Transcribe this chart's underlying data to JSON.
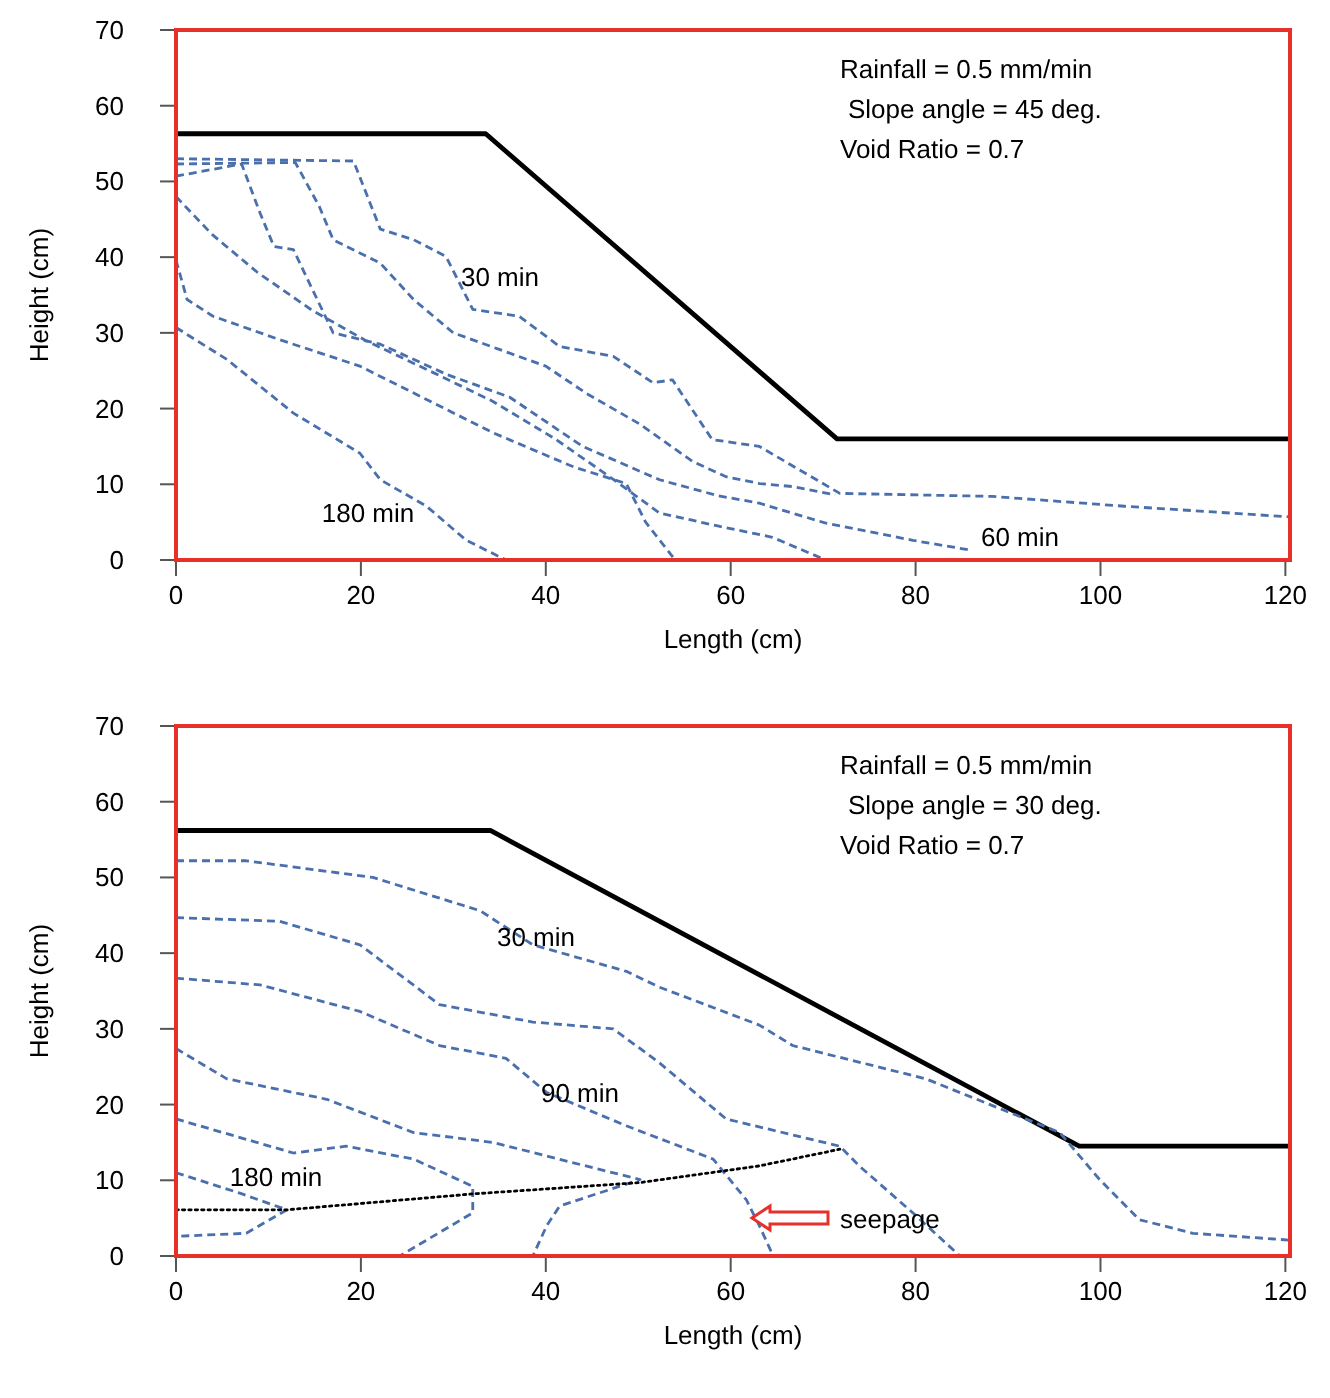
{
  "chart_data": [
    {
      "type": "line",
      "xlabel": "Length (cm)",
      "ylabel": "Height (cm)",
      "xlim": [
        0,
        120.5
      ],
      "xticks": [
        0,
        20,
        40,
        60,
        80,
        100,
        120
      ],
      "ylim": [
        0,
        70
      ],
      "yticks": [
        0,
        10,
        20,
        30,
        40,
        50,
        60,
        70
      ],
      "annotations": [
        "Rainfall = 0.5 mm/min",
        "Slope angle = 45 deg.",
        "Void Ratio = 0.7",
        "30 min",
        "180 min",
        "60 min"
      ],
      "series": [
        {
          "color": "#000000",
          "line_style": "solid",
          "x": [
            0,
            33.5,
            71.5,
            120.5
          ],
          "values": [
            56.3,
            56.3,
            16,
            16
          ]
        },
        {
          "color": "#4a6fad",
          "line_style": "dashed",
          "x": [
            0,
            19.2,
            22.1,
            25.7,
            29.2,
            32.1,
            37.1,
            41.5,
            47.3,
            51.6,
            53.7,
            58,
            63.1,
            71.8,
            88.3,
            102.6,
            120.4
          ],
          "values": [
            53,
            52.7,
            43.7,
            42.3,
            40.1,
            33.1,
            32.2,
            28.2,
            26.9,
            23.4,
            23.8,
            15.9,
            15,
            8.8,
            8.4,
            7.1,
            5.7
          ]
        },
        {
          "color": "#4a6fad",
          "line_style": "dashed",
          "x": [
            0,
            12.9,
            15.5,
            17,
            22.1,
            25.7,
            30,
            40,
            44.4,
            50.1,
            55.9,
            59.5,
            63.1,
            66.7,
            71.3
          ],
          "values": [
            52.3,
            52.5,
            46.7,
            42.3,
            39.2,
            34.4,
            30,
            25.6,
            22,
            18,
            13,
            11,
            10.1,
            9.7,
            8.6
          ]
        },
        {
          "color": "#4a6fad",
          "line_style": "dashed",
          "x": [
            0,
            7.1,
            9.1,
            10.6,
            12.7,
            17,
            22.1,
            29.3,
            36.1,
            44,
            52.3,
            58.6,
            63.1,
            70.2,
            79.7,
            86
          ],
          "values": [
            50.7,
            52.3,
            45.8,
            41.4,
            41,
            30,
            28.5,
            24.5,
            21.5,
            15,
            10.6,
            8.5,
            7.5,
            4.9,
            2.6,
            1.3
          ]
        },
        {
          "color": "#4a6fad",
          "line_style": "dashed",
          "x": [
            0,
            3.9,
            8.8,
            14.7,
            20.5,
            27.4,
            34.2,
            41,
            46.9,
            52.3,
            58.6,
            64.5,
            70.3
          ],
          "values": [
            48,
            43,
            38,
            33,
            29,
            25,
            21,
            16,
            11,
            6.2,
            4.5,
            3,
            0
          ]
        },
        {
          "color": "#4a6fad",
          "line_style": "dashed",
          "x": [
            0,
            1.2,
            4,
            11.2,
            19.9,
            27.1,
            34.3,
            43,
            48.7,
            50.8,
            54
          ],
          "values": [
            39.6,
            34.4,
            32.2,
            29.1,
            25.6,
            21.2,
            16.8,
            12.3,
            10.1,
            5,
            0
          ]
        },
        {
          "color": "#4a6fad",
          "line_style": "dashed",
          "x": [
            0,
            5.5,
            12.7,
            19.9,
            22.1,
            27.1,
            31.4,
            35.7
          ],
          "values": [
            30.7,
            26.5,
            19.4,
            14.1,
            10.6,
            7.1,
            2.6,
            0
          ]
        }
      ]
    },
    {
      "type": "line",
      "xlabel": "Length (cm)",
      "ylabel": "Height (cm)",
      "xlim": [
        0,
        120.5
      ],
      "xticks": [
        0,
        20,
        40,
        60,
        80,
        100,
        120
      ],
      "ylim": [
        0,
        70
      ],
      "yticks": [
        0,
        10,
        20,
        30,
        40,
        50,
        60,
        70
      ],
      "annotations": [
        "Rainfall = 0.5 mm/min",
        "Slope angle = 30 deg.",
        "Void Ratio = 0.7",
        "30 min",
        "90 min",
        "180 min",
        "seepage"
      ],
      "series": [
        {
          "color": "#000000",
          "line_style": "solid",
          "x": [
            0,
            34,
            97.7,
            120.5
          ],
          "values": [
            56.2,
            56.2,
            14.5,
            14.5
          ]
        },
        {
          "color": "#4a6fad",
          "line_style": "dashed",
          "x": [
            0,
            7.6,
            21.3,
            32.9,
            38.6,
            48.7,
            52.3,
            63.1,
            66.7,
            81.1,
            95.6,
            99.9,
            104.2,
            110,
            120.4
          ],
          "values": [
            52.2,
            52.2,
            50,
            45.6,
            41.1,
            37.6,
            35.5,
            30.5,
            27.8,
            23.4,
            16.3,
            10.1,
            4.8,
            3,
            2.1
          ]
        },
        {
          "color": "#4a6fad",
          "line_style": "dashed",
          "x": [
            0,
            11.2,
            19.9,
            28.5,
            38.6,
            47.3,
            52.3,
            59.5,
            71.8,
            73.9,
            79.7,
            84.8
          ],
          "values": [
            44.7,
            44.2,
            41.1,
            33.2,
            30.9,
            30,
            25.5,
            18.1,
            14.5,
            11.9,
            5.7,
            0
          ]
        },
        {
          "color": "#4a6fad",
          "line_style": "dashed",
          "x": [
            0,
            9.1,
            19.9,
            28.5,
            35.7,
            40.1,
            48.7,
            58.1,
            61.7,
            63.1,
            64.6
          ],
          "values": [
            36.7,
            35.8,
            32.3,
            27.8,
            26.1,
            21.6,
            17.2,
            12.8,
            7.4,
            4,
            0
          ]
        },
        {
          "color": "#4a6fad",
          "line_style": "dashed",
          "x": [
            0,
            5.5,
            16.3,
            25.7,
            34.3,
            43,
            50.2,
            41.5,
            40.1,
            38.6
          ],
          "values": [
            27.4,
            23.4,
            20.7,
            16.3,
            15,
            12.3,
            10.1,
            6.6,
            4,
            0
          ]
        },
        {
          "color": "#4a6fad",
          "line_style": "dashed",
          "x": [
            0,
            12.7,
            18.4,
            25.7,
            32.1,
            32.1,
            24.2
          ],
          "values": [
            18.1,
            13.6,
            14.5,
            12.8,
            9.2,
            5.7,
            0
          ]
        },
        {
          "color": "#4a6fad",
          "line_style": "dashed",
          "x": [
            0,
            6.9,
            12,
            7.6,
            0
          ],
          "values": [
            11,
            8.3,
            6.1,
            3,
            2.6
          ]
        },
        {
          "color": "#000000",
          "line_style": "dotted",
          "x": [
            0,
            12,
            32.1,
            50.2,
            63.1,
            71.8
          ],
          "values": [
            6.1,
            6.1,
            8.2,
            9.7,
            11.9,
            14.1
          ]
        }
      ]
    }
  ]
}
